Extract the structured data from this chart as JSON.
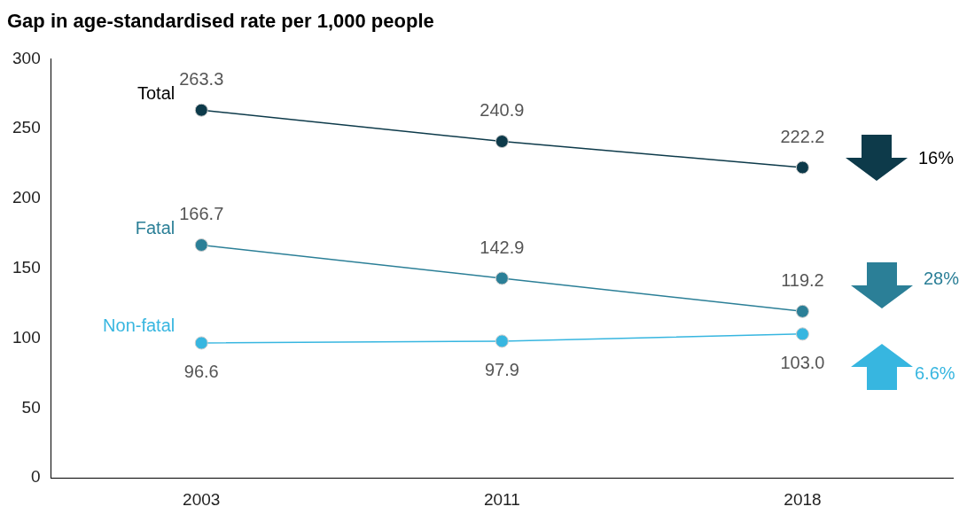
{
  "chart_data": {
    "type": "line",
    "title": "Gap in age-standardised rate per 1,000 people",
    "categories": [
      "2003",
      "2011",
      "2018"
    ],
    "series": [
      {
        "name": "Total",
        "color": "#0d3a4a",
        "values": [
          263.3,
          240.9,
          222.2
        ],
        "value_labels": [
          "263.3",
          "240.9",
          "222.2"
        ]
      },
      {
        "name": "Fatal",
        "color": "#2b7f97",
        "values": [
          166.7,
          142.9,
          119.2
        ],
        "value_labels": [
          "166.7",
          "142.9",
          "119.2"
        ]
      },
      {
        "name": "Non-fatal",
        "color": "#37b6e0",
        "values": [
          96.6,
          97.9,
          103.0
        ],
        "value_labels": [
          "96.6",
          "97.9",
          "103.0"
        ]
      }
    ],
    "ylim": [
      0,
      300
    ],
    "yticks": [
      0,
      50,
      100,
      150,
      200,
      250,
      300
    ],
    "grid": false,
    "legend": false,
    "marker": "circle",
    "line_style": "solid",
    "annotations": [
      "16%",
      "28%",
      "6.6%"
    ]
  }
}
